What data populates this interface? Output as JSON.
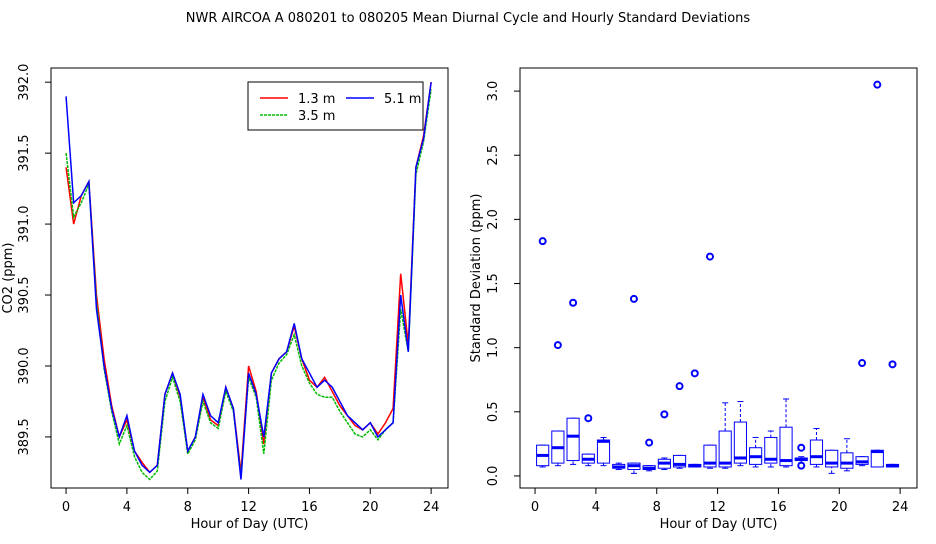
{
  "title": "NWR   AIRCOA A   080201 to 080205   Mean Diurnal Cycle and Hourly Standard Deviations",
  "chart_data": [
    {
      "type": "line",
      "xlabel": "Hour of Day (UTC)",
      "ylabel": "CO2 (ppm)",
      "xlim": [
        -0.99,
        25.11
      ],
      "ylim": [
        389.14,
        392.1
      ],
      "xticks": [
        0,
        4,
        8,
        12,
        16,
        20,
        24
      ],
      "yticks": [
        389.5,
        {
          "value": 390,
          "label": "390.0"
        },
        390.5,
        {
          "value": 391,
          "label": "391.0"
        },
        391.5,
        {
          "value": 392,
          "label": "392.0"
        }
      ],
      "legend": "top-right",
      "x": [
        0,
        0.5,
        1,
        1.5,
        2,
        2.5,
        3,
        3.5,
        4,
        4.5,
        5,
        5.5,
        6,
        6.5,
        7,
        7.5,
        8,
        8.5,
        9,
        9.5,
        10,
        10.5,
        11,
        11.5,
        12,
        12.5,
        13,
        13.5,
        14,
        14.5,
        15,
        15.5,
        16,
        16.5,
        17,
        17.5,
        18,
        18.5,
        19,
        19.5,
        20,
        20.5,
        21,
        21.5,
        22,
        22.5,
        23,
        23.5,
        24
      ],
      "series": [
        {
          "name": "1.3 m",
          "color": "#ff0000",
          "values": [
            391.4,
            391.0,
            391.2,
            391.3,
            390.5,
            390.05,
            389.72,
            389.5,
            389.62,
            389.4,
            389.32,
            389.25,
            389.3,
            389.8,
            389.95,
            389.78,
            389.4,
            389.5,
            389.78,
            389.62,
            389.58,
            389.85,
            389.7,
            389.25,
            390.0,
            389.82,
            389.45,
            389.95,
            390.05,
            390.1,
            390.28,
            390.05,
            389.9,
            389.85,
            389.92,
            389.82,
            389.72,
            389.65,
            389.58,
            389.55,
            389.6,
            389.52,
            389.6,
            389.7,
            390.65,
            390.15,
            391.4,
            391.62,
            392.0
          ]
        },
        {
          "name": "3.5 m",
          "color": "#00bb00",
          "values": [
            391.5,
            391.05,
            391.15,
            391.28,
            390.45,
            389.98,
            389.68,
            389.45,
            389.58,
            389.36,
            389.25,
            389.2,
            389.26,
            389.75,
            389.92,
            389.75,
            389.38,
            389.48,
            389.75,
            389.6,
            389.56,
            389.82,
            389.68,
            389.22,
            389.92,
            389.78,
            389.38,
            389.9,
            390.02,
            390.08,
            390.22,
            390.0,
            389.88,
            389.8,
            389.78,
            389.78,
            389.68,
            389.6,
            389.52,
            389.5,
            389.55,
            389.48,
            389.55,
            389.6,
            390.4,
            390.1,
            391.35,
            391.58,
            391.95
          ]
        },
        {
          "name": "5.1 m",
          "color": "#0000ff",
          "values": [
            391.9,
            391.15,
            391.2,
            391.3,
            390.4,
            390.0,
            389.7,
            389.5,
            389.65,
            389.4,
            389.3,
            389.25,
            389.3,
            389.8,
            389.95,
            389.8,
            389.4,
            389.5,
            389.8,
            389.65,
            389.6,
            389.85,
            389.7,
            389.2,
            389.95,
            389.8,
            389.5,
            389.95,
            390.05,
            390.1,
            390.3,
            390.05,
            389.95,
            389.85,
            389.9,
            389.85,
            389.75,
            389.65,
            389.6,
            389.55,
            389.6,
            389.5,
            389.55,
            389.6,
            390.5,
            390.1,
            391.4,
            391.6,
            392.0
          ]
        }
      ]
    },
    {
      "type": "box",
      "xlabel": "Hour of Day (UTC)",
      "ylabel": "Standard Deviation (ppm)",
      "xlim": [
        -0.99,
        25.11
      ],
      "ylim": [
        -0.094,
        3.18
      ],
      "xticks": [
        0,
        4,
        8,
        12,
        16,
        20,
        24
      ],
      "yticks": [
        {
          "value": 0,
          "label": "0.0"
        },
        0.5,
        {
          "value": 1,
          "label": "1.0"
        },
        1.5,
        {
          "value": 2,
          "label": "2.0"
        },
        2.5,
        {
          "value": 3,
          "label": "3.0"
        }
      ],
      "color": "#0000ff",
      "x": [
        0.5,
        1.5,
        2.5,
        3.5,
        4.5,
        5.5,
        6.5,
        7.5,
        8.5,
        9.5,
        10.5,
        11.5,
        12.5,
        13.5,
        14.5,
        15.5,
        16.5,
        17.5,
        18.5,
        19.5,
        20.5,
        21.5,
        22.5,
        23.5
      ],
      "whisker_low": [
        0.07,
        0.08,
        0.09,
        0.08,
        0.08,
        0.05,
        0.02,
        0.04,
        0.05,
        0.06,
        0.07,
        0.06,
        0.06,
        0.08,
        0.07,
        0.07,
        0.07,
        0.1,
        0.07,
        0.02,
        0.04,
        0.08,
        0.07,
        0.07
      ],
      "q1": [
        0.08,
        0.1,
        0.12,
        0.1,
        0.1,
        0.06,
        0.05,
        0.05,
        0.06,
        0.07,
        0.07,
        0.07,
        0.07,
        0.1,
        0.09,
        0.1,
        0.08,
        0.12,
        0.09,
        0.07,
        0.06,
        0.09,
        0.07,
        0.07
      ],
      "median": [
        0.16,
        0.22,
        0.31,
        0.13,
        0.27,
        0.07,
        0.08,
        0.06,
        0.1,
        0.09,
        0.08,
        0.1,
        0.1,
        0.14,
        0.15,
        0.13,
        0.12,
        0.13,
        0.15,
        0.1,
        0.1,
        0.11,
        0.19,
        0.08
      ],
      "q3": [
        0.24,
        0.35,
        0.45,
        0.17,
        0.28,
        0.09,
        0.1,
        0.08,
        0.13,
        0.16,
        0.09,
        0.24,
        0.35,
        0.42,
        0.22,
        0.3,
        0.38,
        0.14,
        0.28,
        0.2,
        0.18,
        0.15,
        0.2,
        0.09
      ],
      "whisker_high": [
        0.24,
        0.35,
        0.45,
        0.17,
        0.3,
        0.1,
        0.1,
        0.08,
        0.14,
        0.16,
        0.09,
        0.24,
        0.57,
        0.58,
        0.3,
        0.35,
        0.6,
        0.15,
        0.37,
        0.2,
        0.29,
        0.15,
        0.2,
        0.09
      ],
      "outliers": [
        [
          1.83
        ],
        [
          1.02
        ],
        [
          1.35
        ],
        [
          0.45
        ],
        [],
        [],
        [
          1.38
        ],
        [
          0.26
        ],
        [
          0.48
        ],
        [
          0.7
        ],
        [
          0.8
        ],
        [
          1.71
        ],
        [],
        [],
        [],
        [],
        [],
        [
          0.22,
          0.08
        ],
        [],
        [],
        [],
        [
          0.88
        ],
        [
          3.05
        ],
        [
          0.87
        ]
      ]
    }
  ]
}
